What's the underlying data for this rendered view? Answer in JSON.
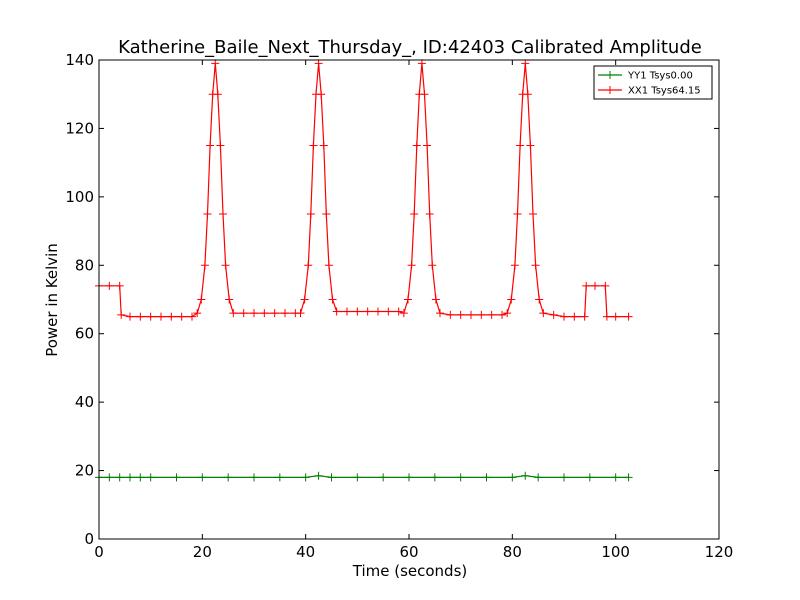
{
  "chart_data": {
    "type": "line",
    "title": "Katherine_Baile_Next_Thursday_, ID:42403 Calibrated Amplitude",
    "xlabel": "Time (seconds)",
    "ylabel": "Power in Kelvin",
    "xlim": [
      0,
      120
    ],
    "ylim": [
      0,
      140
    ],
    "xticks": [
      0,
      20,
      40,
      60,
      80,
      100,
      120
    ],
    "yticks": [
      0,
      20,
      40,
      60,
      80,
      100,
      120,
      140
    ],
    "xtick_labels": [
      "0",
      "20",
      "40",
      "60",
      "80",
      "100",
      "120"
    ],
    "ytick_labels": [
      "0",
      "20",
      "40",
      "60",
      "80",
      "100",
      "120",
      "140"
    ],
    "grid": false,
    "legend_position": "top-right",
    "series": [
      {
        "name": "YY1 Tsys0.00",
        "color": "#008000",
        "marker": "+",
        "x": [
          0,
          2,
          4,
          6,
          8,
          10,
          15,
          20,
          25,
          30,
          35,
          40,
          42.5,
          45,
          50,
          55,
          60,
          65,
          70,
          75,
          80,
          82.5,
          85,
          90,
          95,
          100,
          102.5
        ],
        "y": [
          18,
          18,
          18,
          18,
          18,
          18,
          18,
          18,
          18,
          18,
          18,
          18,
          18.5,
          18,
          18,
          18,
          18,
          18,
          18,
          18,
          18,
          18.5,
          18,
          18,
          18,
          18,
          18
        ]
      },
      {
        "name": "XX1 Tsys64.15",
        "color": "#ff0000",
        "marker": "+",
        "x": [
          0,
          2,
          4,
          4.3,
          6,
          8,
          10,
          12,
          14,
          16,
          18,
          19,
          19.8,
          20.5,
          21,
          21.5,
          22,
          22.5,
          23,
          23.5,
          24,
          24.5,
          25.2,
          26,
          28,
          30,
          32,
          34,
          36,
          38,
          39,
          39.8,
          40.5,
          41,
          41.5,
          42,
          42.5,
          43,
          43.5,
          44,
          44.5,
          45.2,
          46,
          48,
          50,
          52,
          54,
          56,
          58,
          59,
          59.8,
          60.5,
          61,
          61.5,
          62,
          62.5,
          63,
          63.5,
          64,
          64.5,
          65.2,
          66,
          68,
          70,
          72,
          74,
          76,
          78,
          79,
          79.8,
          80.5,
          81,
          81.5,
          82,
          82.5,
          83,
          83.5,
          84,
          84.5,
          85.2,
          86,
          88,
          90,
          92,
          94,
          94.3,
          96,
          98,
          98.3,
          100,
          102.5
        ],
        "y": [
          74,
          74,
          74,
          65.5,
          65,
          65,
          65,
          65,
          65,
          65,
          65,
          66,
          70,
          80,
          95,
          115,
          130,
          139,
          130,
          115,
          95,
          80,
          70,
          66,
          66,
          66,
          66,
          66,
          66,
          66,
          66,
          70,
          80,
          95,
          115,
          130,
          139,
          130,
          115,
          95,
          80,
          70,
          66.5,
          66.5,
          66.5,
          66.5,
          66.5,
          66.5,
          66.5,
          66,
          70,
          80,
          95,
          115,
          130,
          139,
          130,
          115,
          95,
          80,
          70,
          66,
          65.5,
          65.5,
          65.5,
          65.5,
          65.5,
          65.5,
          66,
          70,
          80,
          95,
          115,
          130,
          139,
          130,
          115,
          95,
          80,
          70,
          66,
          65.5,
          65,
          65,
          65,
          74,
          74,
          74,
          65,
          65,
          65
        ]
      }
    ]
  }
}
